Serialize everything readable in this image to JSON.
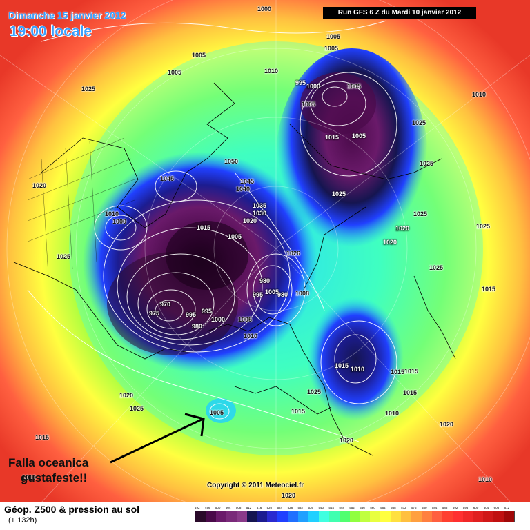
{
  "header": {
    "date": "Dimanche 15 janvier 2012",
    "time": "19:00 locale",
    "run": "Run GFS 6 Z du Mardi 10 janvier 2012"
  },
  "annotation": {
    "line1": "Falla oceanica",
    "line2": "gustafeste!!",
    "arrow_color": "#000000"
  },
  "copyright": "Copyright © 2011 Meteociel.fr",
  "footer": {
    "title": "Géop. Z500 & pression au sol",
    "subtitle": "(+ 132h)"
  },
  "scale": {
    "values": [
      "492",
      "496",
      "500",
      "504",
      "508",
      "512",
      "516",
      "520",
      "524",
      "528",
      "532",
      "536",
      "540",
      "544",
      "548",
      "552",
      "556",
      "560",
      "564",
      "568",
      "572",
      "576",
      "580",
      "584",
      "588",
      "592",
      "596",
      "600",
      "604",
      "608",
      "612"
    ],
    "colors": [
      "#2a0a2a",
      "#4a0a4a",
      "#6a1a6a",
      "#7a2a7a",
      "#8a3a8a",
      "#151550",
      "#1c1c90",
      "#2a2ad0",
      "#2040ff",
      "#2070ff",
      "#20a0ff",
      "#20d0ff",
      "#40ffe0",
      "#40ffb0",
      "#50ff70",
      "#90ff40",
      "#c0ff40",
      "#e8ff40",
      "#ffff40",
      "#ffe040",
      "#ffc040",
      "#ffa040",
      "#ff8040",
      "#ff6040",
      "#ff4030",
      "#ff3030",
      "#f02828",
      "#e02020",
      "#d01818",
      "#c01010",
      "#a00808"
    ]
  },
  "pressure_labels": [
    "1000",
    "1005",
    "1005",
    "1005",
    "1025",
    "1010",
    "995",
    "1000",
    "1005",
    "1005",
    "1005",
    "1015",
    "1005",
    "1010",
    "1025",
    "1025",
    "1050",
    "1045",
    "1045",
    "1040",
    "1035",
    "1030",
    "1020",
    "1020",
    "1010",
    "1000",
    "1015",
    "1005",
    "1025",
    "1025",
    "1020",
    "1025",
    "1020",
    "1025",
    "1025",
    "1026",
    "980",
    "995",
    "1005",
    "980",
    "1008",
    "1015",
    "970",
    "975",
    "995",
    "995",
    "1000",
    "980",
    "1005",
    "1010",
    "1015",
    "1010",
    "1015",
    "1015",
    "1015",
    "1025",
    "1015",
    "1020",
    "1025",
    "1005",
    "1010",
    "1020",
    "1020",
    "1015",
    "1010",
    "1010",
    "1020"
  ]
}
